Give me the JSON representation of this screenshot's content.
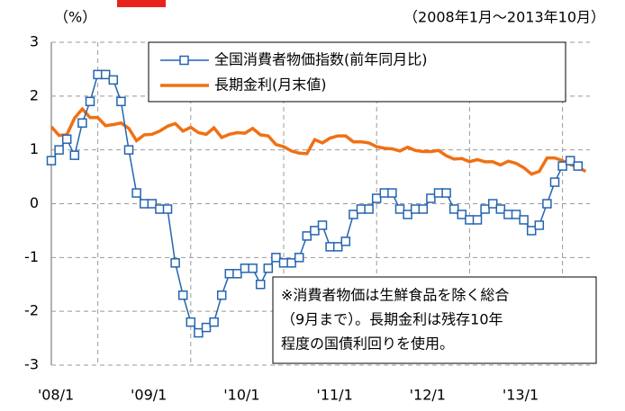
{
  "chart_data": {
    "type": "line",
    "unit_label": "（%）",
    "period_label": "（2008年1月～2013年10月）",
    "categories": [
      "'08/1",
      null,
      null,
      null,
      null,
      null,
      null,
      null,
      null,
      null,
      null,
      null,
      "'09/1",
      null,
      null,
      null,
      null,
      null,
      null,
      null,
      null,
      null,
      null,
      null,
      "'10/1",
      null,
      null,
      null,
      null,
      null,
      null,
      null,
      null,
      null,
      null,
      null,
      "'11/1",
      null,
      null,
      null,
      null,
      null,
      null,
      null,
      null,
      null,
      null,
      null,
      "'12/1",
      null,
      null,
      null,
      null,
      null,
      null,
      null,
      null,
      null,
      null,
      null,
      "'13/1",
      null,
      null,
      null,
      null,
      null,
      null,
      null,
      null,
      null
    ],
    "series": [
      {
        "name": "全国消費者物価指数(前年同月比)",
        "color": "#2464b0",
        "marker": "square",
        "values": [
          0.8,
          1.0,
          1.2,
          0.9,
          1.5,
          1.9,
          2.4,
          2.4,
          2.3,
          1.9,
          1.0,
          0.2,
          0.0,
          0.0,
          -0.1,
          -0.1,
          -1.1,
          -1.7,
          -2.2,
          -2.4,
          -2.3,
          -2.2,
          -1.7,
          -1.3,
          -1.3,
          -1.2,
          -1.2,
          -1.5,
          -1.2,
          -1.0,
          -1.1,
          -1.1,
          -1.0,
          -0.6,
          -0.5,
          -0.4,
          -0.8,
          -0.8,
          -0.7,
          -0.2,
          -0.1,
          -0.1,
          0.1,
          0.2,
          0.2,
          -0.1,
          -0.2,
          -0.1,
          -0.1,
          0.1,
          0.2,
          0.2,
          -0.1,
          -0.2,
          -0.3,
          -0.3,
          -0.1,
          0.0,
          -0.1,
          -0.2,
          -0.2,
          -0.3,
          -0.5,
          -0.4,
          0.0,
          0.4,
          0.7,
          0.8,
          0.7,
          null
        ]
      },
      {
        "name": "長期金利(月末値)",
        "color": "#f07014",
        "marker": "none",
        "values": [
          1.43,
          1.27,
          1.28,
          1.59,
          1.76,
          1.6,
          1.6,
          1.45,
          1.47,
          1.5,
          1.4,
          1.17,
          1.28,
          1.29,
          1.35,
          1.44,
          1.49,
          1.35,
          1.42,
          1.32,
          1.29,
          1.41,
          1.23,
          1.29,
          1.32,
          1.31,
          1.4,
          1.28,
          1.26,
          1.1,
          1.06,
          0.98,
          0.94,
          0.93,
          1.19,
          1.13,
          1.22,
          1.26,
          1.26,
          1.15,
          1.15,
          1.13,
          1.06,
          1.03,
          1.02,
          0.98,
          1.05,
          0.99,
          0.97,
          0.97,
          0.99,
          0.89,
          0.83,
          0.84,
          0.78,
          0.82,
          0.78,
          0.78,
          0.72,
          0.79,
          0.75,
          0.67,
          0.55,
          0.6,
          0.85,
          0.85,
          0.8,
          0.73,
          0.68,
          0.6
        ]
      }
    ],
    "ylim": [
      -3,
      3
    ],
    "yticks": [
      -3,
      -2,
      -1,
      0,
      1,
      2,
      3
    ],
    "grid": true,
    "legend": "top-right",
    "annotation": [
      "※消費者物価は生鮮食品を除く総合",
      "（9月まで）。長期金利は残存10年",
      "程度の国債利回りを使用。"
    ]
  }
}
